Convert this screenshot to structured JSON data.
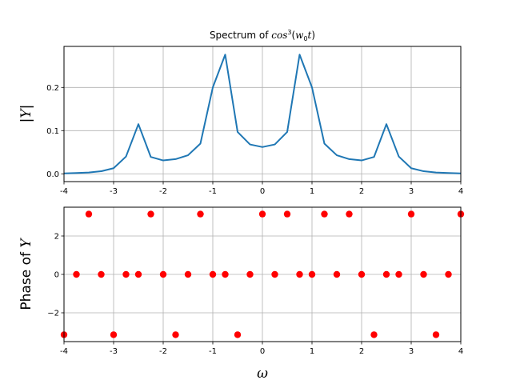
{
  "chart_data": [
    {
      "type": "line",
      "title": {
        "prefix": "Spectrum of ",
        "func": "cos",
        "power": "3",
        "open": "(",
        "arg": "w",
        "sub": "0",
        "arg2": "t",
        "close": ")"
      },
      "ylabel": {
        "bar1": "|",
        "var": "Y",
        "bar2": "|"
      },
      "xlim": [
        -4,
        4
      ],
      "ylim": [
        -0.018,
        0.295
      ],
      "xticks": [
        "-4",
        "-3",
        "-2",
        "-1",
        "0",
        "1",
        "2",
        "3",
        "4"
      ],
      "yticks": [
        "0.0",
        "0.1",
        "0.2"
      ],
      "ytick_values": [
        0.0,
        0.1,
        0.2
      ],
      "grid": true,
      "color": "#1f77b4",
      "x": [
        -4,
        -3.75,
        -3.5,
        -3.25,
        -3,
        -2.75,
        -2.5,
        -2.25,
        -2,
        -1.75,
        -1.5,
        -1.25,
        -1,
        -0.75,
        -0.5,
        -0.25,
        0,
        0.25,
        0.5,
        0.75,
        1,
        1.25,
        1.5,
        1.75,
        2,
        2.25,
        2.5,
        2.75,
        3,
        3.25,
        3.5,
        3.75,
        4
      ],
      "y": [
        0.001,
        0.002,
        0.003,
        0.006,
        0.013,
        0.04,
        0.115,
        0.039,
        0.031,
        0.034,
        0.043,
        0.07,
        0.2,
        0.276,
        0.097,
        0.068,
        0.062,
        0.068,
        0.097,
        0.276,
        0.2,
        0.07,
        0.043,
        0.034,
        0.031,
        0.039,
        0.115,
        0.04,
        0.013,
        0.006,
        0.003,
        0.002,
        0.001
      ]
    },
    {
      "type": "scatter",
      "xlabel": "ω",
      "ylabel": {
        "text": "Phase of ",
        "var": "Y"
      },
      "xlim": [
        -4,
        4
      ],
      "ylim": [
        -3.5,
        3.5
      ],
      "xticks": [
        "-4",
        "-3",
        "-2",
        "-1",
        "0",
        "1",
        "2",
        "3",
        "4"
      ],
      "yticks": [
        "−2",
        "0",
        "2"
      ],
      "ytick_values": [
        -2,
        0,
        2
      ],
      "grid": true,
      "color": "#ff0000",
      "x": [
        -4,
        -3.75,
        -3.5,
        -3.25,
        -3,
        -2.75,
        -2.5,
        -2.25,
        -2,
        -1.75,
        -1.5,
        -1.25,
        -1,
        -0.75,
        -0.5,
        -0.25,
        0,
        0.25,
        0.5,
        0.75,
        1,
        1.25,
        1.5,
        1.75,
        2,
        2.25,
        2.5,
        2.75,
        3,
        3.25,
        3.5,
        3.75,
        4
      ],
      "y": [
        -3.14159,
        0,
        3.14159,
        0,
        -3.14159,
        0,
        0,
        3.14159,
        0,
        -3.14159,
        0,
        3.14159,
        0,
        0,
        -3.14159,
        0,
        3.14159,
        0,
        3.14159,
        0,
        0,
        3.14159,
        0,
        3.14159,
        0,
        -3.14159,
        0,
        0,
        3.14159,
        0,
        -3.14159,
        0,
        3.14159
      ]
    }
  ]
}
